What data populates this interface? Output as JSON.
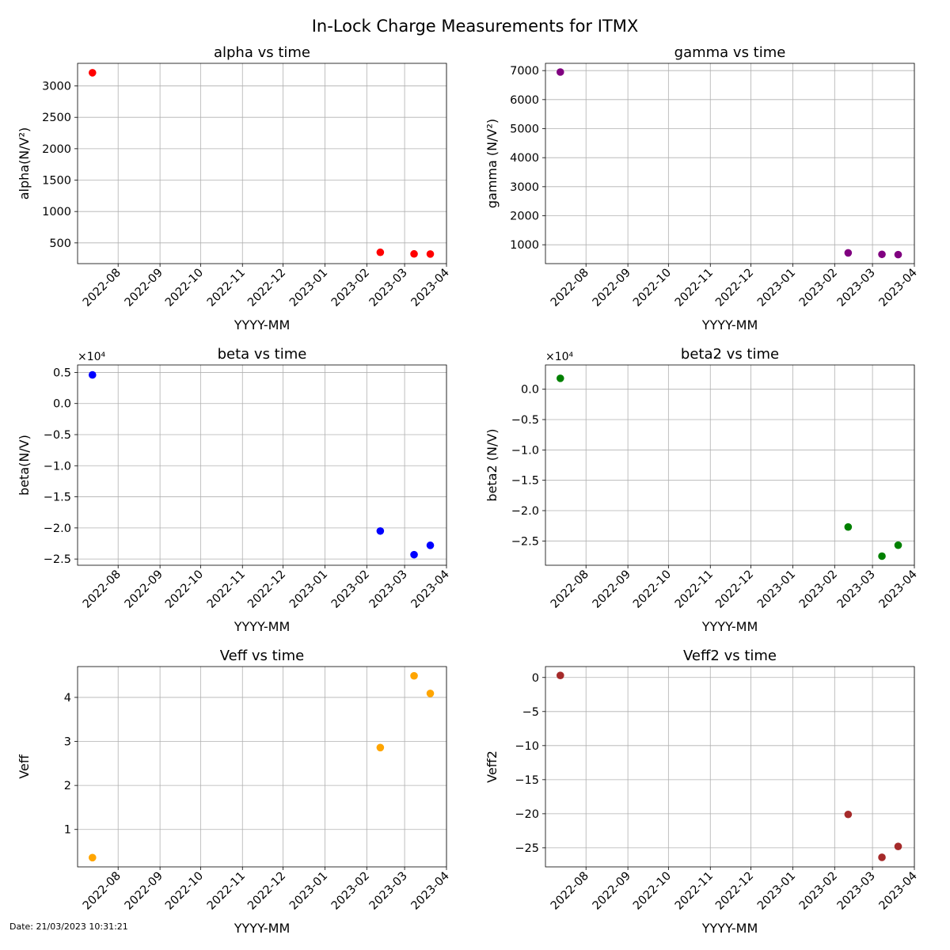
{
  "footer_text": "Date: 21/03/2023 10:31:21",
  "chart_data": {
    "suptitle": "In-Lock Charge Measurements for ITMX",
    "panels": [
      {
        "type": "scatter",
        "title": "alpha vs time",
        "xlabel": "YYYY-MM",
        "ylabel": "alpha(N/V²)",
        "color": "#ff0000",
        "x": [
          "2022-07-13",
          "2023-02-11",
          "2023-03-08",
          "2023-03-20"
        ],
        "y": [
          3210,
          350,
          325,
          323
        ],
        "ylim": [
          170,
          3360
        ],
        "yticks": [
          500,
          1000,
          1500,
          2000,
          2500,
          3000
        ],
        "ytick_labels": [
          "500",
          "1000",
          "1500",
          "2000",
          "2500",
          "3000"
        ],
        "offset_text": "",
        "grid": true
      },
      {
        "type": "scatter",
        "title": "gamma vs time",
        "xlabel": "YYYY-MM",
        "ylabel": "gamma (N/V²)",
        "color": "#800080",
        "x": [
          "2022-07-13",
          "2023-02-11",
          "2023-03-08",
          "2023-03-20"
        ],
        "y": [
          6950,
          720,
          670,
          660
        ],
        "ylim": [
          350,
          7250
        ],
        "yticks": [
          1000,
          2000,
          3000,
          4000,
          5000,
          6000,
          7000
        ],
        "ytick_labels": [
          "1000",
          "2000",
          "3000",
          "4000",
          "5000",
          "6000",
          "7000"
        ],
        "offset_text": "",
        "grid": true
      },
      {
        "type": "scatter",
        "title": "beta vs time",
        "xlabel": "YYYY-MM",
        "ylabel": "beta(N/V)",
        "color": "#0000ff",
        "x": [
          "2022-07-13",
          "2023-02-11",
          "2023-03-08",
          "2023-03-20"
        ],
        "y": [
          4600,
          -20500,
          -24300,
          -22800
        ],
        "ylim": [
          -26000,
          6200
        ],
        "yticks": [
          -25000,
          -20000,
          -15000,
          -10000,
          -5000,
          0,
          5000
        ],
        "ytick_labels": [
          "−2.5",
          "−2.0",
          "−1.5",
          "−1.0",
          "−0.5",
          "0.0",
          "0.5"
        ],
        "offset_text": "×10⁴",
        "grid": true
      },
      {
        "type": "scatter",
        "title": "beta2 vs time",
        "xlabel": "YYYY-MM",
        "ylabel": "beta2 (N/V)",
        "color": "#008000",
        "x": [
          "2022-07-13",
          "2023-02-11",
          "2023-03-08",
          "2023-03-20"
        ],
        "y": [
          1800,
          -22700,
          -27500,
          -25700
        ],
        "ylim": [
          -29000,
          4000
        ],
        "yticks": [
          -25000,
          -20000,
          -15000,
          -10000,
          -5000,
          0
        ],
        "ytick_labels": [
          "−2.5",
          "−2.0",
          "−1.5",
          "−1.0",
          "−0.5",
          "0.0"
        ],
        "offset_text": "×10⁴",
        "grid": true
      },
      {
        "type": "scatter",
        "title": "Veff vs time",
        "xlabel": "YYYY-MM",
        "ylabel": "Veff",
        "color": "#ffa500",
        "x": [
          "2022-07-13",
          "2023-02-11",
          "2023-03-08",
          "2023-03-20"
        ],
        "y": [
          0.36,
          2.86,
          4.49,
          4.09
        ],
        "ylim": [
          0.15,
          4.7
        ],
        "yticks": [
          1,
          2,
          3,
          4
        ],
        "ytick_labels": [
          "1",
          "2",
          "3",
          "4"
        ],
        "offset_text": "",
        "grid": true
      },
      {
        "type": "scatter",
        "title": "Veff2 vs time",
        "xlabel": "YYYY-MM",
        "ylabel": "Veff2",
        "color": "#a52a2a",
        "x": [
          "2022-07-13",
          "2023-02-11",
          "2023-03-08",
          "2023-03-20"
        ],
        "y": [
          0.3,
          -20.1,
          -26.4,
          -24.8
        ],
        "ylim": [
          -27.8,
          1.6
        ],
        "yticks": [
          -25,
          -20,
          -15,
          -10,
          -5,
          0
        ],
        "ytick_labels": [
          "−25",
          "−20",
          "−15",
          "−10",
          "−5",
          "0"
        ],
        "offset_text": "",
        "grid": true
      }
    ],
    "shared_x": {
      "xlim": [
        "2022-07-02",
        "2023-04-01"
      ],
      "ticks": [
        "2022-08-01",
        "2022-09-01",
        "2022-10-01",
        "2022-11-01",
        "2022-12-01",
        "2023-01-01",
        "2023-02-01",
        "2023-03-01",
        "2023-04-01"
      ],
      "tick_labels": [
        "2022-08",
        "2022-09",
        "2022-10",
        "2022-11",
        "2022-12",
        "2023-01",
        "2023-02",
        "2023-03",
        "2023-04"
      ]
    }
  }
}
